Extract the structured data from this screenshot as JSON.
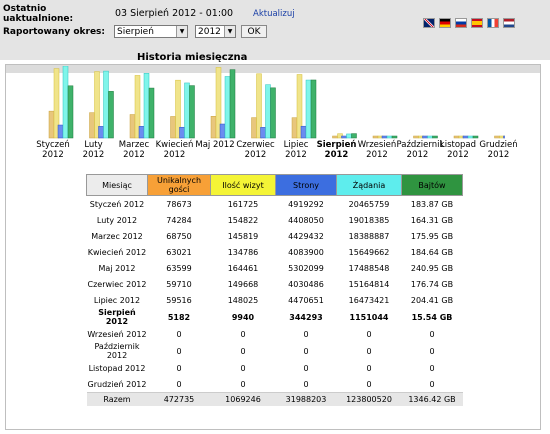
{
  "header": {
    "updated_label": "Ostatnio uaktualnione:",
    "updated_value": "03 Sierpień 2012 - 01:00",
    "refresh_link": "Aktualizuj",
    "period_label": "Raportowany okres:",
    "month_select": "Sierpień",
    "year_select": "2012",
    "ok_button": "OK"
  },
  "flags": [
    "gb-flag",
    "de-flag",
    "ru-flag",
    "es-flag",
    "fr-flag",
    "nl-flag"
  ],
  "section_title": "Historia miesięczna",
  "colors": {
    "unique": "#f7a037",
    "visits": "#f4f436",
    "pages": "#3c6ee0",
    "hits": "#5eeded",
    "bytes": "#2f9440",
    "header_bg": "#e4e4e4"
  },
  "chart_data": {
    "type": "bar",
    "categories": [
      "Styczeń 2012",
      "Luty 2012",
      "Marzec 2012",
      "Kwiecień 2012",
      "Maj 2012",
      "Czerwiec 2012",
      "Lipiec 2012",
      "Sierpień 2012",
      "Wrzesień 2012",
      "Październik 2012",
      "Listopad 2012",
      "Grudzień 2012"
    ],
    "series": [
      {
        "name": "Unikalnych gości",
        "values": [
          78673,
          74284,
          68750,
          63021,
          63599,
          59710,
          59516,
          5182,
          0,
          0,
          0,
          0
        ]
      },
      {
        "name": "Ilość wizyt",
        "values": [
          161725,
          154822,
          145819,
          134786,
          164461,
          149668,
          148025,
          9940,
          0,
          0,
          0,
          0
        ]
      },
      {
        "name": "Strony",
        "values": [
          4919292,
          4408050,
          4429432,
          4083900,
          5302099,
          4030486,
          4470651,
          344293,
          0,
          0,
          0,
          0
        ]
      },
      {
        "name": "Żądania",
        "values": [
          20465759,
          19018385,
          18388887,
          15649662,
          17488548,
          15164814,
          16473421,
          1151044,
          0,
          0,
          0,
          0
        ]
      },
      {
        "name": "Bajtów",
        "values": [
          183.87,
          164.31,
          175.95,
          184.64,
          240.95,
          176.74,
          204.41,
          15.54,
          0,
          0,
          0,
          0
        ]
      }
    ]
  },
  "table": {
    "headers": [
      "Miesiąc",
      "Unikalnych gości",
      "Ilość wizyt",
      "Strony",
      "Żądania",
      "Bajtów"
    ],
    "rows": [
      [
        "Styczeń 2012",
        "78673",
        "161725",
        "4919292",
        "20465759",
        "183.87 GB"
      ],
      [
        "Luty 2012",
        "74284",
        "154822",
        "4408050",
        "19018385",
        "164.31 GB"
      ],
      [
        "Marzec 2012",
        "68750",
        "145819",
        "4429432",
        "18388887",
        "175.95 GB"
      ],
      [
        "Kwiecień 2012",
        "63021",
        "134786",
        "4083900",
        "15649662",
        "184.64 GB"
      ],
      [
        "Maj 2012",
        "63599",
        "164461",
        "5302099",
        "17488548",
        "240.95 GB"
      ],
      [
        "Czerwiec 2012",
        "59710",
        "149668",
        "4030486",
        "15164814",
        "176.74 GB"
      ],
      [
        "Lipiec 2012",
        "59516",
        "148025",
        "4470651",
        "16473421",
        "204.41 GB"
      ],
      [
        "Sierpień 2012",
        "5182",
        "9940",
        "344293",
        "1151044",
        "15.54 GB"
      ],
      [
        "Wrzesień 2012",
        "0",
        "0",
        "0",
        "0",
        "0"
      ],
      [
        "Październik 2012",
        "0",
        "0",
        "0",
        "0",
        "0"
      ],
      [
        "Listopad 2012",
        "0",
        "0",
        "0",
        "0",
        "0"
      ],
      [
        "Grudzień 2012",
        "0",
        "0",
        "0",
        "0",
        "0"
      ]
    ],
    "total": [
      "Razem",
      "472735",
      "1069246",
      "31988203",
      "123800520",
      "1346.42 GB"
    ]
  }
}
